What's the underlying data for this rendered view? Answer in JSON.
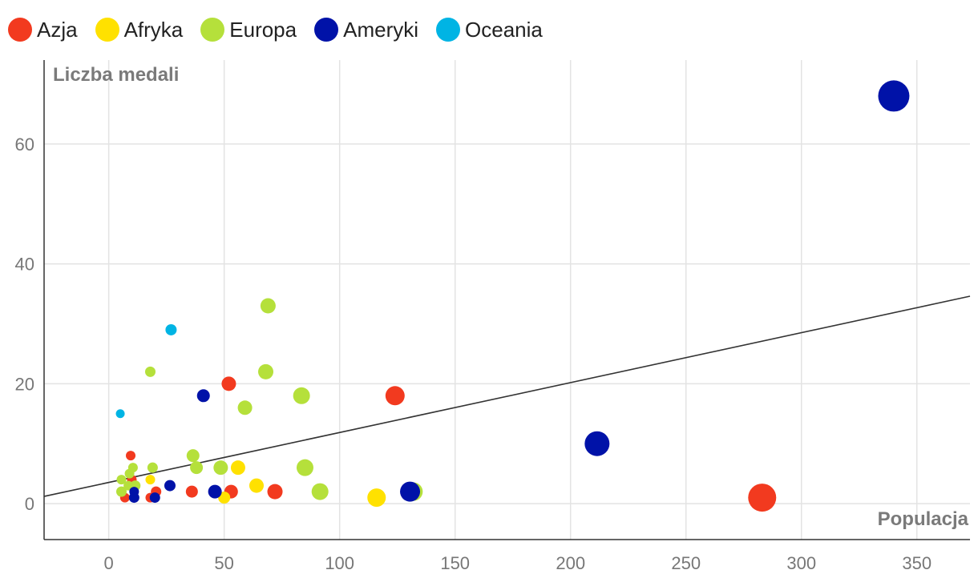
{
  "legend": [
    {
      "name": "Azja",
      "color": "#f23a1f"
    },
    {
      "name": "Afryka",
      "color": "#ffe100"
    },
    {
      "name": "Europa",
      "color": "#b5e03b"
    },
    {
      "name": "Ameryki",
      "color": "#0012a8"
    },
    {
      "name": "Oceania",
      "color": "#00b4e4"
    }
  ],
  "chart_data": {
    "type": "scatter",
    "xlabel": "Populacja",
    "ylabel": "Liczba medali",
    "xlim": [
      -28,
      373
    ],
    "ylim": [
      -6,
      74
    ],
    "x_ticks": [
      0,
      50,
      100,
      150,
      200,
      250,
      300,
      350
    ],
    "y_ticks": [
      0,
      20,
      40,
      60
    ],
    "grid": true,
    "trendline": {
      "x0": -28,
      "y0": 1.2,
      "x1": 373,
      "y1": 34.6
    },
    "series": [
      {
        "name": "Azja",
        "color": "#f23a1f",
        "points": [
          {
            "x": 9.5,
            "y": 8,
            "size": 1.2
          },
          {
            "x": 10,
            "y": 4,
            "size": 1.2
          },
          {
            "x": 7,
            "y": 1,
            "size": 1.2
          },
          {
            "x": 18,
            "y": 1,
            "size": 1.2
          },
          {
            "x": 20.5,
            "y": 2,
            "size": 1.3
          },
          {
            "x": 36,
            "y": 2,
            "size": 1.5
          },
          {
            "x": 52,
            "y": 20,
            "size": 1.8
          },
          {
            "x": 53,
            "y": 2,
            "size": 1.7
          },
          {
            "x": 72,
            "y": 2,
            "size": 1.9
          },
          {
            "x": 124,
            "y": 18,
            "size": 2.4
          },
          {
            "x": 283,
            "y": 1,
            "size": 3.5
          }
        ]
      },
      {
        "name": "Afryka",
        "color": "#ffe100",
        "points": [
          {
            "x": 18,
            "y": 4,
            "size": 1.2
          },
          {
            "x": 50,
            "y": 1,
            "size": 1.5
          },
          {
            "x": 56,
            "y": 6,
            "size": 1.8
          },
          {
            "x": 64,
            "y": 3,
            "size": 1.8
          },
          {
            "x": 116,
            "y": 1,
            "size": 2.3
          }
        ]
      },
      {
        "name": "Europa",
        "color": "#b5e03b",
        "points": [
          {
            "x": 5.5,
            "y": 4,
            "size": 1.2
          },
          {
            "x": 5.5,
            "y": 2,
            "size": 1.3
          },
          {
            "x": 8.5,
            "y": 3,
            "size": 1.2
          },
          {
            "x": 9,
            "y": 5,
            "size": 1.2
          },
          {
            "x": 10.5,
            "y": 6,
            "size": 1.2
          },
          {
            "x": 11.5,
            "y": 3,
            "size": 1.3
          },
          {
            "x": 18,
            "y": 22,
            "size": 1.3
          },
          {
            "x": 19,
            "y": 6,
            "size": 1.3
          },
          {
            "x": 36.5,
            "y": 8,
            "size": 1.6
          },
          {
            "x": 38,
            "y": 6,
            "size": 1.6
          },
          {
            "x": 48.5,
            "y": 6,
            "size": 1.8
          },
          {
            "x": 59,
            "y": 16,
            "size": 1.8
          },
          {
            "x": 68,
            "y": 22,
            "size": 1.9
          },
          {
            "x": 69,
            "y": 33,
            "size": 1.9
          },
          {
            "x": 83.5,
            "y": 18,
            "size": 2.1
          },
          {
            "x": 85,
            "y": 6,
            "size": 2.1
          },
          {
            "x": 91.5,
            "y": 2,
            "size": 2.1
          },
          {
            "x": 132,
            "y": 2,
            "size": 2.3
          }
        ]
      },
      {
        "name": "Ameryki",
        "color": "#0012a8",
        "points": [
          {
            "x": 11,
            "y": 2,
            "size": 1.2
          },
          {
            "x": 11,
            "y": 1,
            "size": 1.3
          },
          {
            "x": 20,
            "y": 1,
            "size": 1.3
          },
          {
            "x": 26.5,
            "y": 3,
            "size": 1.4
          },
          {
            "x": 41,
            "y": 18,
            "size": 1.6
          },
          {
            "x": 46,
            "y": 2,
            "size": 1.7
          },
          {
            "x": 130.5,
            "y": 2,
            "size": 2.5
          },
          {
            "x": 211.5,
            "y": 10,
            "size": 3.1
          },
          {
            "x": 340,
            "y": 68,
            "size": 3.9
          }
        ]
      },
      {
        "name": "Oceania",
        "color": "#00b4e4",
        "points": [
          {
            "x": 5,
            "y": 15,
            "size": 1.1
          },
          {
            "x": 27,
            "y": 29,
            "size": 1.4
          }
        ]
      }
    ]
  }
}
